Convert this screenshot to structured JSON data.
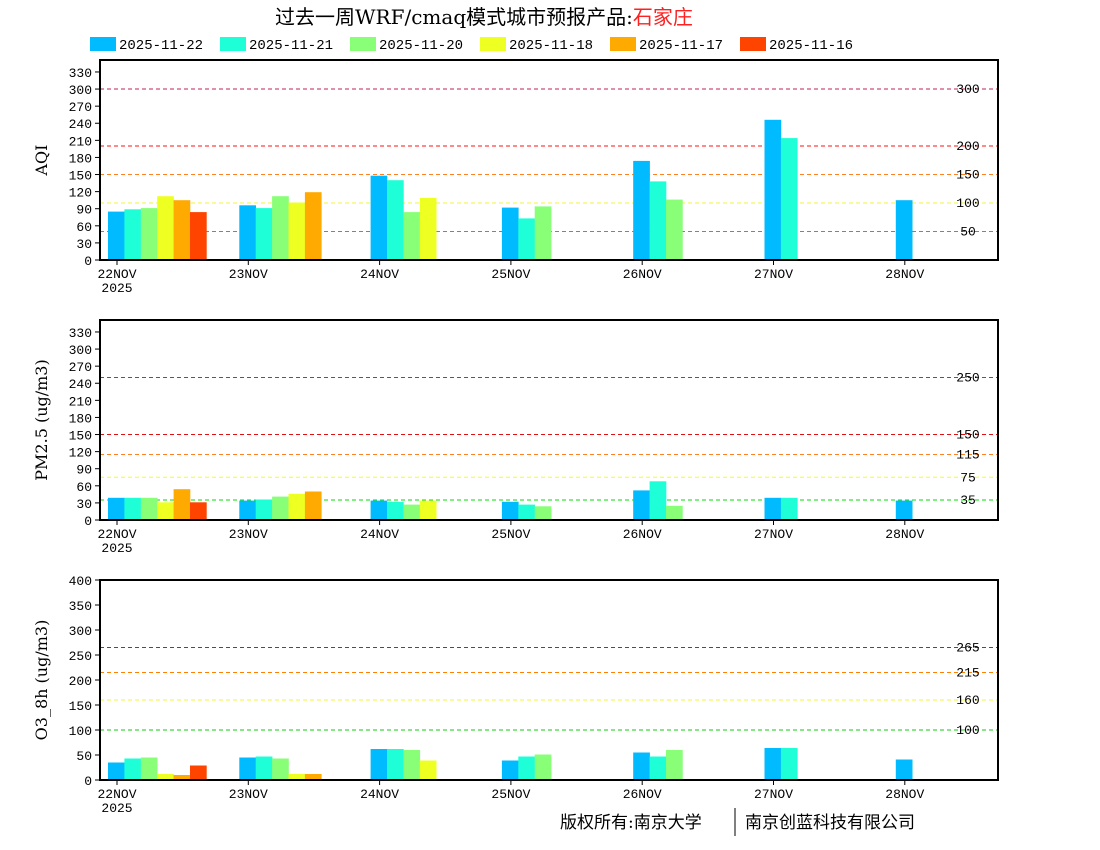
{
  "title": {
    "main": "过去一周WRF/cmaq模式城市预报产品:",
    "city": "石家庄",
    "city_color": "#ff2020"
  },
  "legend": [
    {
      "label": "2025-11-22",
      "color": "#00bbff"
    },
    {
      "label": "2025-11-21",
      "color": "#1effd8"
    },
    {
      "label": "2025-11-20",
      "color": "#88ff77"
    },
    {
      "label": "2025-11-18",
      "color": "#eeff22"
    },
    {
      "label": "2025-11-17",
      "color": "#ffaa00"
    },
    {
      "label": "2025-11-16",
      "color": "#ff4400"
    }
  ],
  "footer": {
    "left": "版权所有:南京大学",
    "right": "南京创蓝科技有限公司"
  },
  "chart_data": [
    {
      "type": "bar",
      "ylabel": "AQI",
      "ylim": [
        0,
        351
      ],
      "yticks": [
        0,
        30,
        60,
        90,
        120,
        150,
        180,
        210,
        240,
        270,
        300,
        330
      ],
      "categories": [
        "22NOV",
        "23NOV",
        "24NOV",
        "25NOV",
        "26NOV",
        "27NOV",
        "28NOV"
      ],
      "year_label": "2025",
      "thresholds": [
        {
          "value": 50,
          "label": "50",
          "color": "#00dd00"
        },
        {
          "value": 100,
          "label": "100",
          "color": "#f4f430"
        },
        {
          "value": 150,
          "label": "150",
          "color": "#ff8020"
        },
        {
          "value": 200,
          "label": "200",
          "color": "#ff1010"
        },
        {
          "value": 300,
          "label": "300",
          "color": "#c0205a"
        }
      ],
      "series": [
        {
          "name": "2025-11-22",
          "values": [
            85,
            96,
            148,
            92,
            174,
            246,
            105
          ]
        },
        {
          "name": "2025-11-21",
          "values": [
            89,
            91,
            140,
            73,
            138,
            214,
            null
          ]
        },
        {
          "name": "2025-11-20",
          "values": [
            91,
            112,
            84,
            94,
            106,
            null,
            null
          ]
        },
        {
          "name": "2025-11-18",
          "values": [
            112,
            101,
            109,
            null,
            null,
            null,
            null
          ]
        },
        {
          "name": "2025-11-17",
          "values": [
            105,
            119,
            null,
            null,
            null,
            null,
            null
          ]
        },
        {
          "name": "2025-11-16",
          "values": [
            84,
            null,
            null,
            null,
            null,
            null,
            null
          ]
        }
      ]
    },
    {
      "type": "bar",
      "ylabel": "PM2.5 (ug/m3)",
      "ylim": [
        0,
        351
      ],
      "yticks": [
        0,
        30,
        60,
        90,
        120,
        150,
        180,
        210,
        240,
        270,
        300,
        330
      ],
      "categories": [
        "22NOV",
        "23NOV",
        "24NOV",
        "25NOV",
        "26NOV",
        "27NOV",
        "28NOV"
      ],
      "year_label": "2025",
      "thresholds": [
        {
          "value": 35,
          "label": "35",
          "color": "#00dd00"
        },
        {
          "value": 75,
          "label": "75",
          "color": "#ffff00"
        },
        {
          "value": 115,
          "label": "115",
          "color": "#ff8020"
        },
        {
          "value": 150,
          "label": "150",
          "color": "#e01010"
        },
        {
          "value": 250,
          "label": "250",
          "color": "#e0107a"
        }
      ],
      "series": [
        {
          "name": "2025-11-22",
          "values": [
            39,
            34,
            34,
            32,
            52,
            39,
            34
          ]
        },
        {
          "name": "2025-11-21",
          "values": [
            39,
            36,
            32,
            27,
            68,
            39,
            null
          ]
        },
        {
          "name": "2025-11-20",
          "values": [
            39,
            41,
            27,
            24,
            25,
            null,
            null
          ]
        },
        {
          "name": "2025-11-18",
          "values": [
            31,
            46,
            34,
            null,
            null,
            null,
            null
          ]
        },
        {
          "name": "2025-11-17",
          "values": [
            54,
            50,
            null,
            null,
            null,
            null,
            null
          ]
        },
        {
          "name": "2025-11-16",
          "values": [
            31,
            null,
            null,
            null,
            null,
            null,
            null
          ]
        }
      ]
    },
    {
      "type": "bar",
      "ylabel": "O3_8h (ug/m3)",
      "ylim": [
        0,
        400
      ],
      "yticks": [
        0,
        50,
        100,
        150,
        200,
        250,
        300,
        350,
        400
      ],
      "categories": [
        "22NOV",
        "23NOV",
        "24NOV",
        "25NOV",
        "26NOV",
        "27NOV",
        "28NOV"
      ],
      "year_label": "2025",
      "thresholds": [
        {
          "value": 100,
          "label": "100",
          "color": "#10cc10"
        },
        {
          "value": 160,
          "label": "160",
          "color": "#f4f430"
        },
        {
          "value": 215,
          "label": "215",
          "color": "#ff8000"
        },
        {
          "value": 265,
          "label": "265",
          "color": "#e01010"
        }
      ],
      "series": [
        {
          "name": "2025-11-22",
          "values": [
            35,
            45,
            62,
            39,
            55,
            64,
            41
          ]
        },
        {
          "name": "2025-11-21",
          "values": [
            43,
            47,
            62,
            47,
            47,
            64,
            null
          ]
        },
        {
          "name": "2025-11-20",
          "values": [
            45,
            43,
            60,
            51,
            60,
            null,
            null
          ]
        },
        {
          "name": "2025-11-18",
          "values": [
            12,
            12,
            39,
            null,
            null,
            null,
            null
          ]
        },
        {
          "name": "2025-11-17",
          "values": [
            10,
            12,
            null,
            null,
            null,
            null,
            null
          ]
        },
        {
          "name": "2025-11-16",
          "values": [
            29,
            null,
            null,
            null,
            null,
            null,
            null
          ]
        }
      ]
    }
  ]
}
